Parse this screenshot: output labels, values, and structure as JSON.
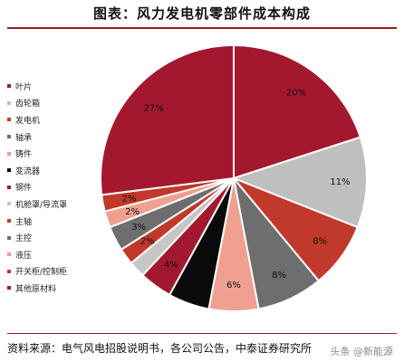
{
  "chart_data": {
    "type": "pie",
    "title": "图表：风力发电机零部件成本构成",
    "categories": [
      "叶片",
      "齿轮箱",
      "发电机",
      "轴承",
      "铸件",
      "变流器",
      "钢件",
      "机舱罩/导流罩",
      "主轴",
      "主控",
      "液压",
      "开关柜/控制柜",
      "其他原材料"
    ],
    "values": [
      20,
      11,
      8,
      8,
      6,
      5,
      4,
      2,
      2,
      3,
      2,
      2,
      27
    ],
    "labels": [
      "20%",
      "11%",
      "8%",
      "8%",
      "6%",
      "",
      "4%",
      "",
      "2%",
      "3%",
      "2%",
      "2%",
      "27%"
    ],
    "colors": [
      "#a3182f",
      "#bfbfbf",
      "#c0392b",
      "#6e6e6e",
      "#f0a090",
      "#0a0a0a",
      "#a3182f",
      "#c6c6c6",
      "#c0392b",
      "#6e6e6e",
      "#f0a090",
      "#c0392b",
      "#a3182f"
    ],
    "legend_position": "left"
  },
  "source": "资料来源：电气风电招股说明书，各公司公告，中泰证券研究所",
  "watermark": "头条 @新能源"
}
